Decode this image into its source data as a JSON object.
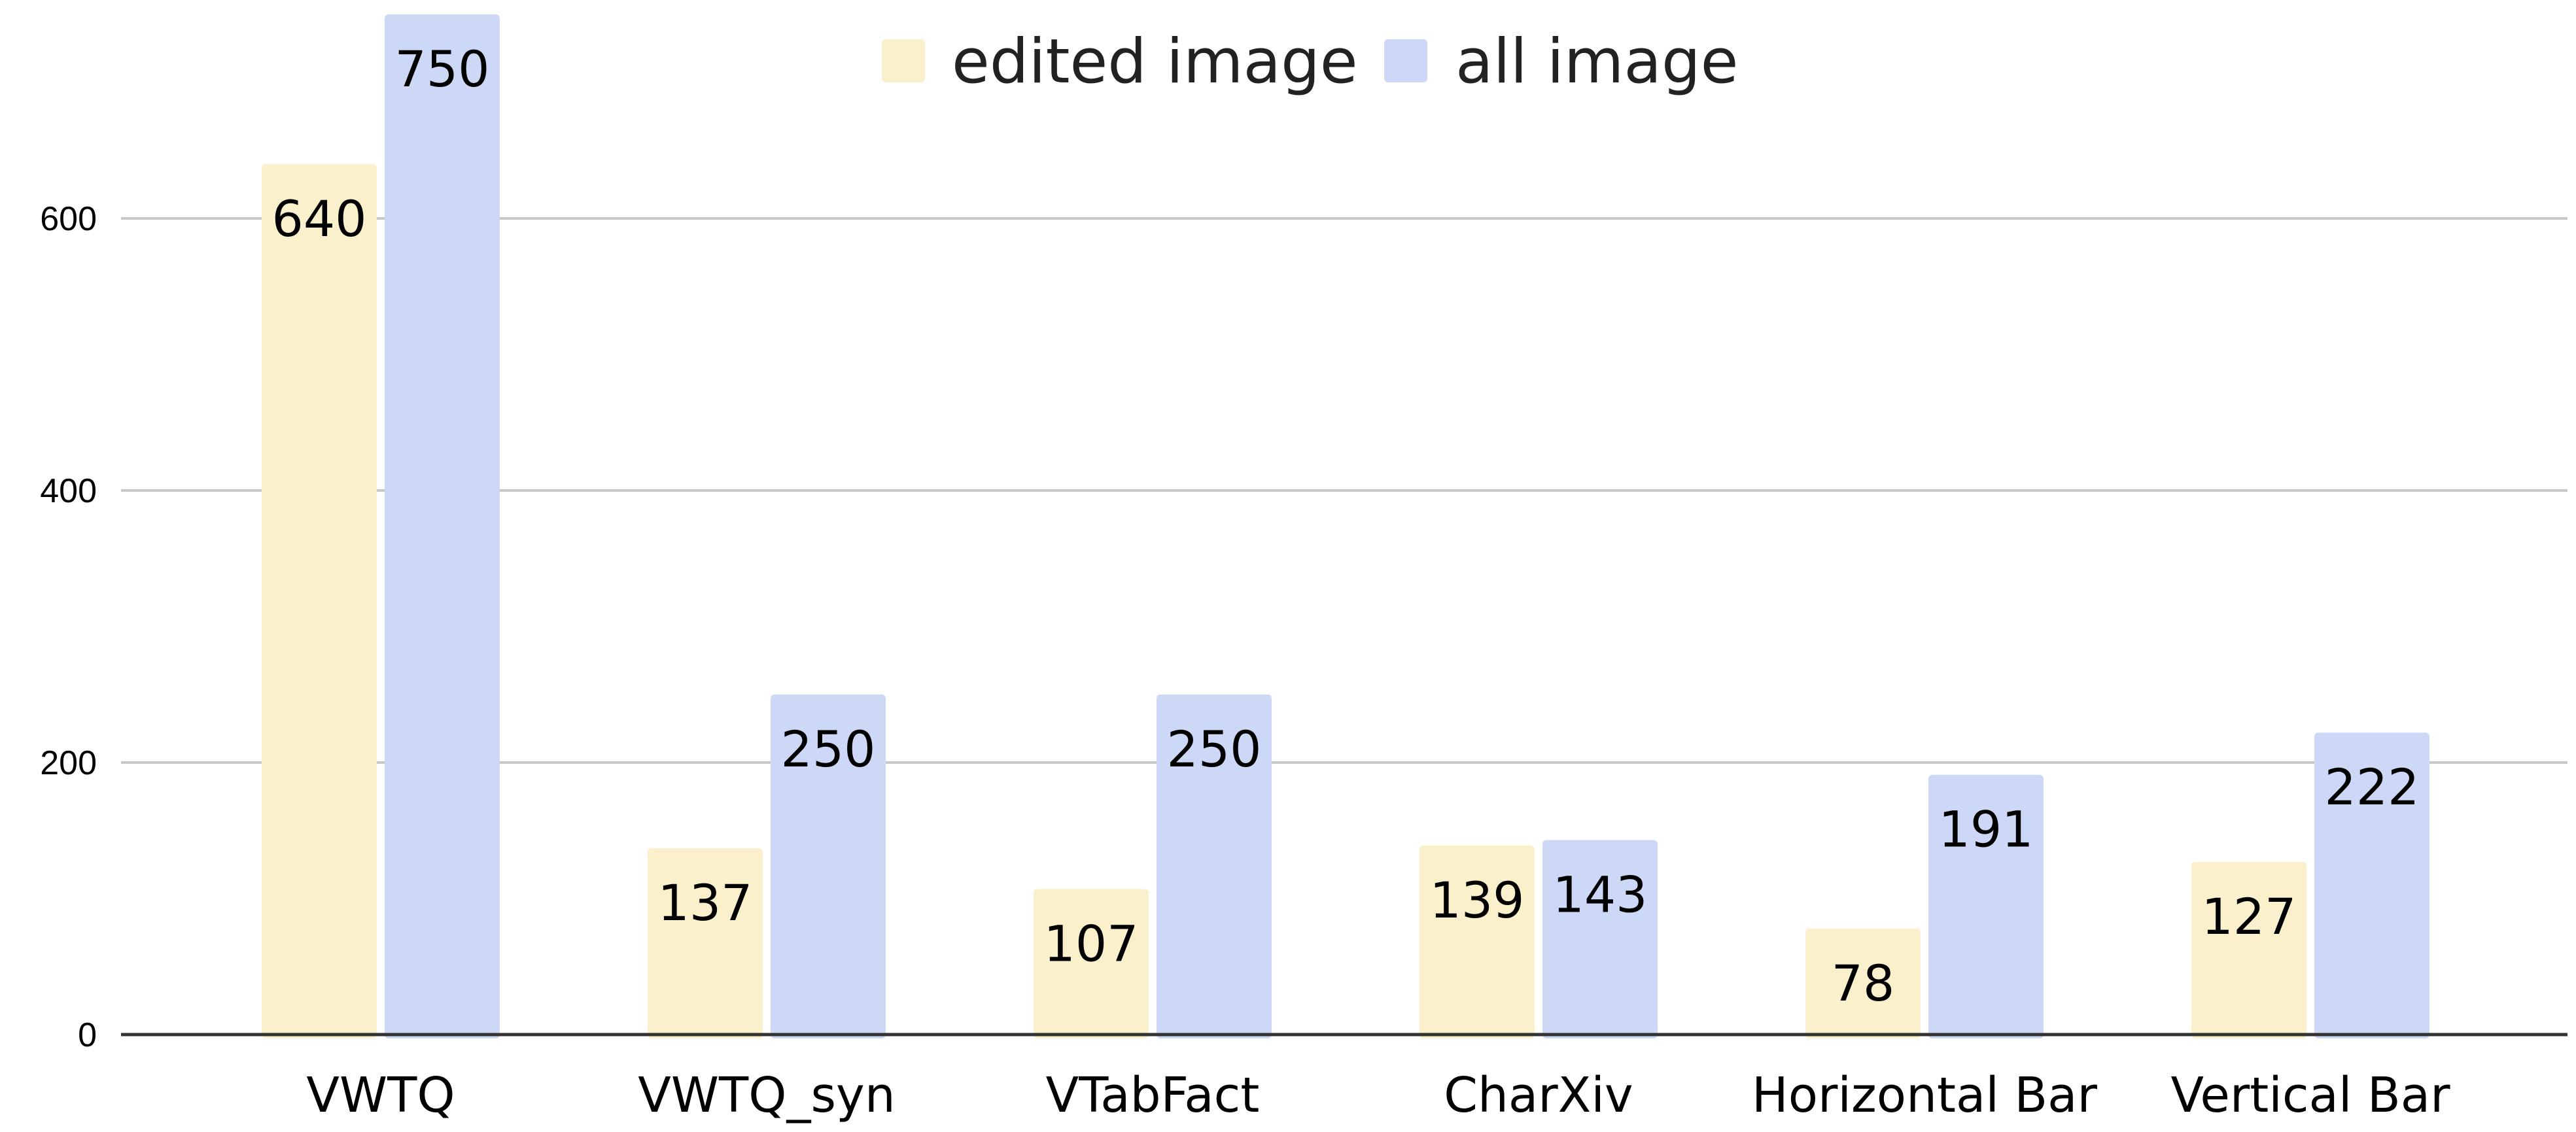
{
  "chart_data": {
    "type": "bar",
    "categories": [
      "VWTQ",
      "VWTQ_syn",
      "VTabFact",
      "CharXiv",
      "Horizontal Bar",
      "Vertical Bar"
    ],
    "series": [
      {
        "name": "edited image",
        "color": "#faf0cc",
        "values": [
          640,
          137,
          107,
          139,
          78,
          127
        ]
      },
      {
        "name": "all image",
        "color": "#cdd8f6",
        "values": [
          750,
          250,
          250,
          143,
          191,
          222
        ]
      }
    ],
    "yticks": [
      0,
      200,
      400,
      600
    ],
    "ylim": [
      0,
      750
    ],
    "grid": true,
    "legend_position": "top-center",
    "title": "",
    "xlabel": "",
    "ylabel": ""
  }
}
